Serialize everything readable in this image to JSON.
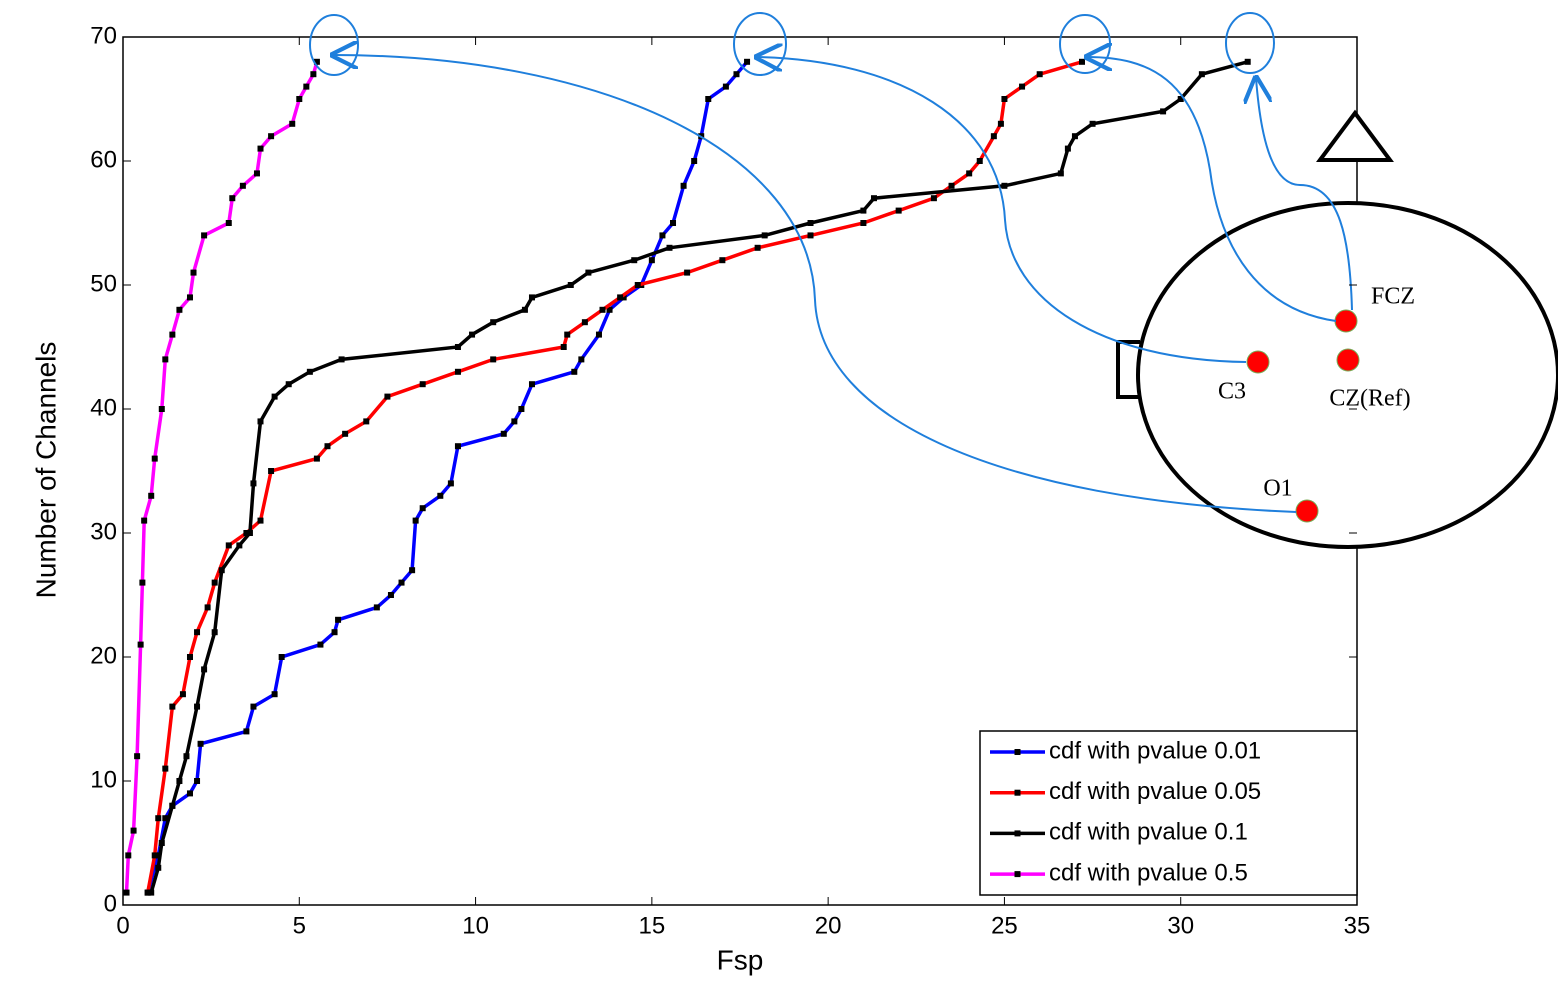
{
  "chart_data": {
    "type": "line",
    "xlabel": "Fsp",
    "ylabel": "Number of Channels",
    "xlim": [
      0,
      35
    ],
    "ylim": [
      0,
      70
    ],
    "xticks": [
      0,
      5,
      10,
      15,
      20,
      25,
      30,
      35
    ],
    "yticks": [
      0,
      10,
      20,
      30,
      40,
      50,
      60,
      70
    ],
    "grid": false,
    "legend_position": "lower right",
    "annotations": [
      "FCZ",
      "C3",
      "CZ(Ref)",
      "O1"
    ],
    "series": [
      {
        "name": "cdf with pvalue 0.01",
        "color": "#0000ff",
        "x": [
          0.7,
          1.0,
          1.2,
          1.4,
          1.9,
          2.1,
          2.2,
          3.5,
          3.7,
          4.3,
          4.5,
          5.6,
          6.0,
          6.1,
          7.2,
          7.6,
          7.9,
          8.2,
          8.3,
          8.5,
          9.0,
          9.3,
          9.5,
          10.8,
          11.1,
          11.3,
          11.6,
          12.8,
          13.0,
          13.5,
          13.8,
          14.2,
          14.7,
          15.0,
          15.3,
          15.6,
          15.9,
          16.2,
          16.4,
          16.6,
          17.1,
          17.4,
          17.7
        ],
        "values": [
          1,
          4,
          7,
          8,
          9,
          10,
          13,
          14,
          16,
          17,
          20,
          21,
          22,
          23,
          24,
          25,
          26,
          27,
          31,
          32,
          33,
          34,
          37,
          38,
          39,
          40,
          42,
          43,
          44,
          46,
          48,
          49,
          50,
          52,
          54,
          55,
          58,
          60,
          62,
          65,
          66,
          67,
          68
        ]
      },
      {
        "name": "cdf with pvalue 0.05",
        "color": "#ff0000",
        "x": [
          0.7,
          0.9,
          1.0,
          1.2,
          1.4,
          1.7,
          1.9,
          2.1,
          2.4,
          2.6,
          3.0,
          3.5,
          3.9,
          4.2,
          5.5,
          5.8,
          6.3,
          6.9,
          7.5,
          8.5,
          9.5,
          10.5,
          12.5,
          12.6,
          13.1,
          13.6,
          14.1,
          14.6,
          16.0,
          17.0,
          18.0,
          19.5,
          21.0,
          22.0,
          23.0,
          23.5,
          24.0,
          24.3,
          24.7,
          24.9,
          25.0,
          25.5,
          26.0,
          27.2
        ],
        "values": [
          1,
          4,
          7,
          11,
          16,
          17,
          20,
          22,
          24,
          26,
          29,
          30,
          31,
          35,
          36,
          37,
          38,
          39,
          41,
          42,
          43,
          44,
          45,
          46,
          47,
          48,
          49,
          50,
          51,
          52,
          53,
          54,
          55,
          56,
          57,
          58,
          59,
          60,
          62,
          63,
          65,
          66,
          67,
          68
        ]
      },
      {
        "name": "cdf with pvalue 0.1",
        "color": "#000000",
        "x": [
          0.8,
          1.0,
          1.1,
          1.4,
          1.6,
          1.8,
          2.1,
          2.3,
          2.6,
          2.8,
          3.3,
          3.6,
          3.7,
          3.9,
          4.3,
          4.7,
          5.3,
          6.2,
          9.5,
          9.9,
          10.5,
          11.4,
          11.6,
          12.7,
          13.2,
          14.5,
          15.5,
          18.2,
          19.5,
          21.0,
          21.3,
          25.0,
          26.6,
          26.8,
          27.0,
          27.5,
          29.5,
          30.0,
          30.6,
          31.9
        ],
        "values": [
          1,
          3,
          5,
          8,
          10,
          12,
          16,
          19,
          22,
          27,
          29,
          30,
          34,
          39,
          41,
          42,
          43,
          44,
          45,
          46,
          47,
          48,
          49,
          50,
          51,
          52,
          53,
          54,
          55,
          56,
          57,
          58,
          59,
          61,
          62,
          63,
          64,
          65,
          67,
          68
        ]
      },
      {
        "name": "cdf with pvalue 0.5",
        "color": "#ff00ff",
        "x": [
          0.1,
          0.15,
          0.3,
          0.4,
          0.5,
          0.55,
          0.6,
          0.8,
          0.9,
          1.1,
          1.2,
          1.4,
          1.6,
          1.9,
          2.0,
          2.3,
          3.0,
          3.1,
          3.4,
          3.8,
          3.9,
          4.2,
          4.8,
          5.0,
          5.2,
          5.4,
          5.5
        ],
        "values": [
          1,
          4,
          6,
          12,
          21,
          26,
          31,
          33,
          36,
          40,
          44,
          46,
          48,
          49,
          51,
          54,
          55,
          57,
          58,
          59,
          61,
          62,
          63,
          65,
          66,
          67,
          68
        ]
      }
    ]
  }
}
